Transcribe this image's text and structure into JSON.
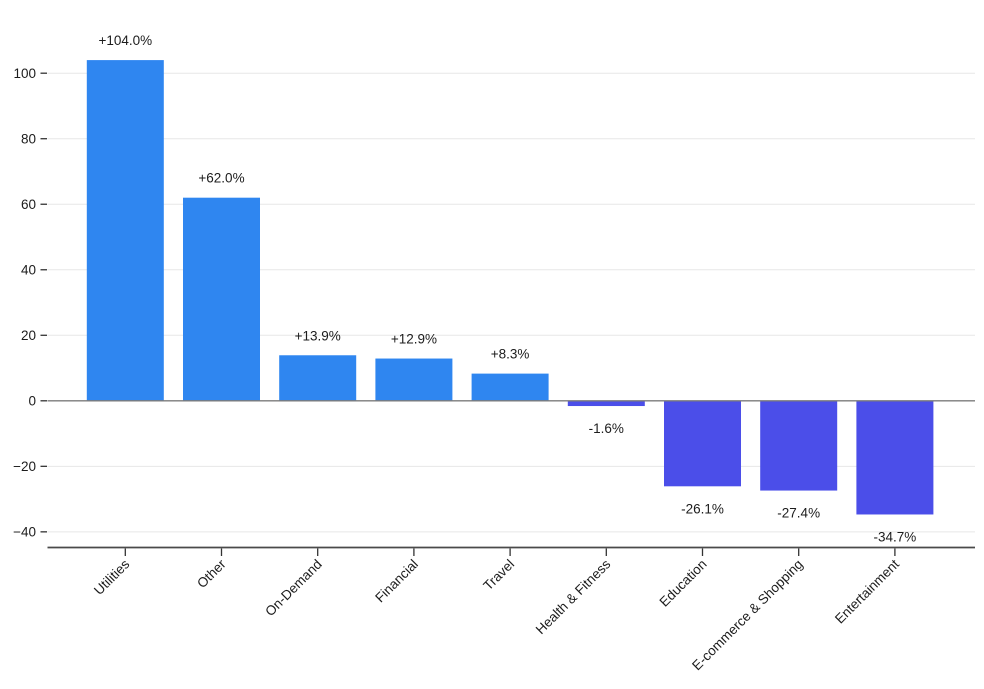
{
  "chart_data": {
    "type": "bar",
    "title": "",
    "xlabel": "",
    "ylabel": "",
    "categories": [
      "Utilities",
      "Other",
      "On-Demand",
      "Financial",
      "Travel",
      "Health & Fitness",
      "Education",
      "E-commerce & Shopping",
      "Entertainment"
    ],
    "values": [
      104.0,
      62.0,
      13.9,
      12.9,
      8.3,
      -1.6,
      -26.1,
      -27.4,
      -34.7
    ],
    "value_labels": [
      "+104.0%",
      "+62.0%",
      "+13.9%",
      "+12.9%",
      "+8.3%",
      "-1.6%",
      "-26.1%",
      "-27.4%",
      "-34.7%"
    ],
    "ylim": [
      -45,
      115
    ],
    "yticks": [
      -40,
      -20,
      0,
      20,
      40,
      60,
      80,
      100
    ],
    "ytick_labels": [
      "−40",
      "−20",
      "0",
      "20",
      "40",
      "60",
      "80",
      "100"
    ],
    "grid": true,
    "legend": "none",
    "colors": {
      "positive_bar": "#2F86F0",
      "negative_bar": "#4B4EE9",
      "gridline": "#e7e7e7",
      "zero_line": "#7b7b7b",
      "axis_line": "#4a4a4a",
      "tick": "#333333",
      "text": "#1c1c1c"
    }
  }
}
